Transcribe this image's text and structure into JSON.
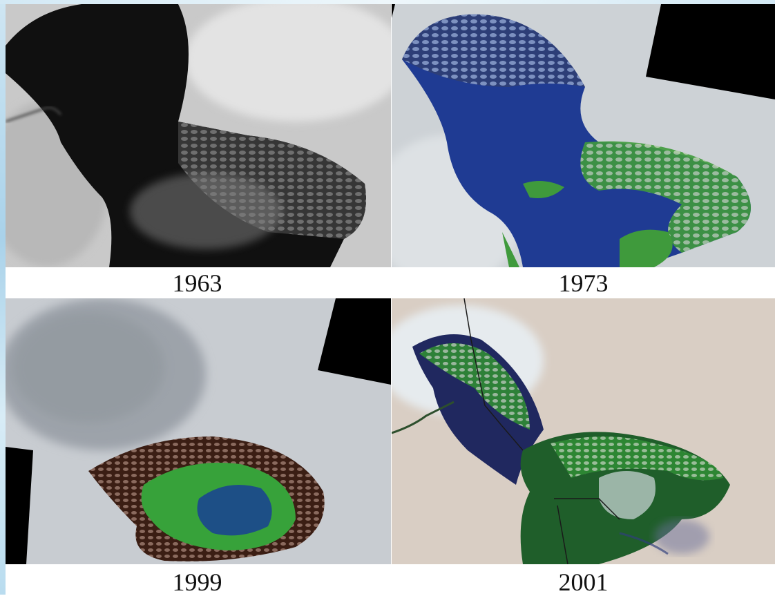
{
  "panels": [
    {
      "id": "1963",
      "year_label": "1963",
      "colors": {
        "water": "#101010",
        "land": "#c9c9c9",
        "dunes": "#5a5a5a"
      }
    },
    {
      "id": "1973",
      "year_label": "1973",
      "colors": {
        "water": "#1f3b93",
        "land": "#cdd2d6",
        "vegetation": "#3f9a3c",
        "nodata": "#000000"
      }
    },
    {
      "id": "1999",
      "year_label": "1999",
      "colors": {
        "water": "#1d4f86",
        "land": "#c8ccd1",
        "vegetation": "#37a23a",
        "marsh": "#3b1e14",
        "nodata": "#000000"
      }
    },
    {
      "id": "2001",
      "year_label": "2001",
      "colors": {
        "water": "#20285f",
        "land": "#d9cec4",
        "vegetation": "#2f8b34",
        "nodata": "#000000"
      }
    }
  ]
}
